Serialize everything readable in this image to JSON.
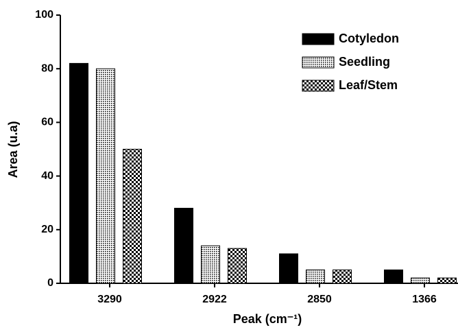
{
  "chart_data": {
    "type": "bar",
    "x_label": "Peak (cm⁻¹)",
    "y_label": "Area (u.a)",
    "categories": [
      "3290",
      "2922",
      "2850",
      "1366"
    ],
    "series": [
      {
        "name": "Cotyledon",
        "color": "#000000",
        "pattern": "solid",
        "values": [
          82,
          28,
          11,
          5
        ]
      },
      {
        "name": "Seedling",
        "color": "#000000",
        "pattern": "dots",
        "values": [
          80,
          14,
          5,
          2
        ]
      },
      {
        "name": "Leaf/Stem",
        "color": "#000000",
        "pattern": "checker",
        "values": [
          50,
          13,
          5,
          2
        ]
      }
    ],
    "ylim": [
      0,
      100
    ],
    "yticks": [
      0,
      20,
      40,
      60,
      80,
      100
    ],
    "grid": false,
    "legend": "upper right"
  }
}
